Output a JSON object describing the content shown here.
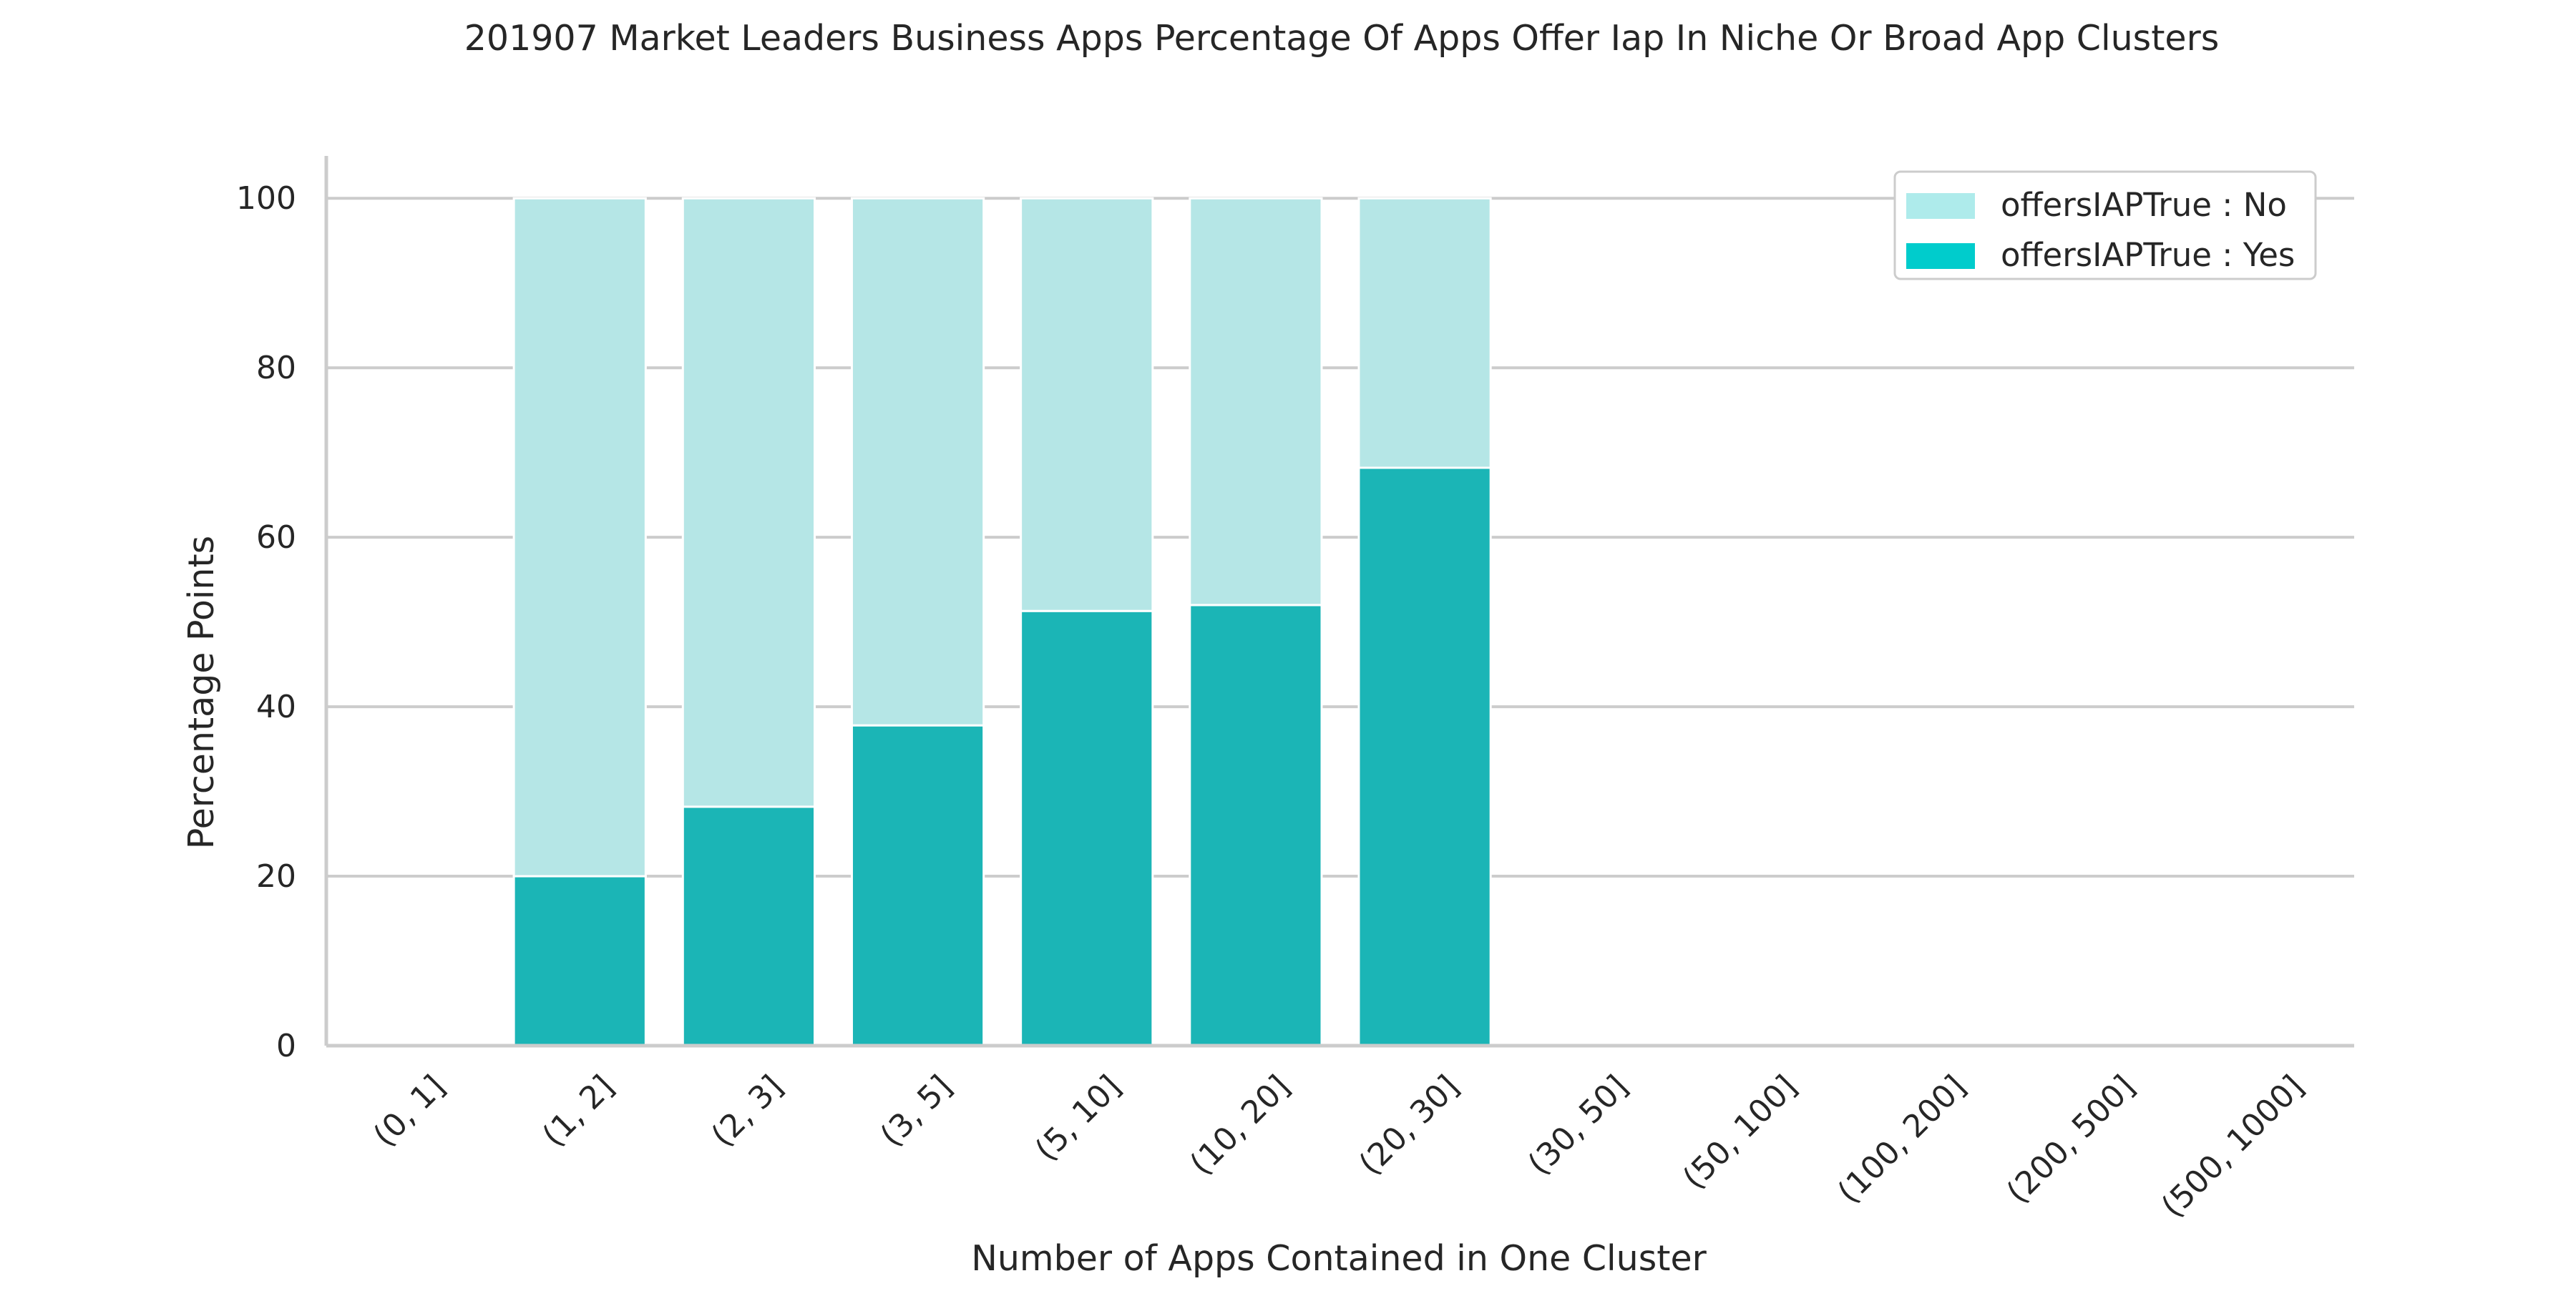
{
  "chart_data": {
    "type": "bar",
    "stacked": true,
    "title": "201907 Market Leaders Business Apps Percentage Of Apps Offer Iap In Niche Or Broad App Clusters",
    "xlabel": "Number of Apps Contained in One Cluster",
    "ylabel": "Percentage Points",
    "ylim": [
      0,
      105
    ],
    "yticks": [
      0,
      20,
      40,
      60,
      80,
      100
    ],
    "grid": "horizontal",
    "legend_position": "top-right",
    "categories": [
      "(0, 1]",
      "(1, 2]",
      "(2, 3]",
      "(3, 5]",
      "(5, 10]",
      "(10, 20]",
      "(20, 30]",
      "(30, 50]",
      "(50, 100]",
      "(100, 200]",
      "(200, 500]",
      "(500, 1000]"
    ],
    "series": [
      {
        "name": "offersIAPTrue : Yes",
        "color": "#1bb5b6",
        "legend_color": "#00cccc",
        "values": [
          0,
          20,
          28.2,
          37.8,
          51.3,
          52,
          68.2,
          0,
          0,
          0,
          0,
          0
        ]
      },
      {
        "name": "offersIAPTrue : No",
        "color": "#b5e6e6",
        "legend_color": "#aeebeb",
        "values": [
          0,
          80,
          71.8,
          62.2,
          48.7,
          48,
          31.8,
          0,
          0,
          0,
          0,
          0
        ]
      }
    ],
    "legend_order": [
      "offersIAPTrue : No",
      "offersIAPTrue : Yes"
    ]
  }
}
